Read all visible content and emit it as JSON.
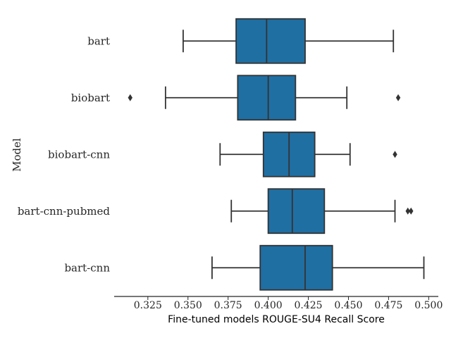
{
  "chart_data": {
    "type": "box",
    "orientation": "horizontal",
    "xlabel": "Fine-tuned models ROUGE-SU4 Recall Score",
    "ylabel": "Model",
    "xlim": [
      0.304,
      0.506
    ],
    "xticks": [
      0.325,
      0.35,
      0.375,
      0.4,
      0.425,
      0.45,
      0.475,
      0.5
    ],
    "xtick_labels": [
      "0.325",
      "0.350",
      "0.375",
      "0.400",
      "0.425",
      "0.450",
      "0.475",
      "0.500"
    ],
    "grid": false,
    "box_color": "#1f6fa3",
    "line_color": "#333333",
    "categories": [
      "bart",
      "biobart",
      "biobart-cnn",
      "bart-cnn-pubmed",
      "bart-cnn"
    ],
    "boxes": [
      {
        "name": "bart",
        "whisker_low": 0.347,
        "q1": 0.38,
        "median": 0.399,
        "q3": 0.423,
        "whisker_high": 0.478,
        "outliers": []
      },
      {
        "name": "biobart",
        "whisker_low": 0.336,
        "q1": 0.381,
        "median": 0.4,
        "q3": 0.417,
        "whisker_high": 0.449,
        "outliers": [
          0.314,
          0.481
        ]
      },
      {
        "name": "biobart-cnn",
        "whisker_low": 0.37,
        "q1": 0.397,
        "median": 0.413,
        "q3": 0.429,
        "whisker_high": 0.451,
        "outliers": [
          0.479
        ]
      },
      {
        "name": "bart-cnn-pubmed",
        "whisker_low": 0.377,
        "q1": 0.4,
        "median": 0.415,
        "q3": 0.435,
        "whisker_high": 0.479,
        "outliers": [
          0.487,
          0.489
        ]
      },
      {
        "name": "bart-cnn",
        "whisker_low": 0.365,
        "q1": 0.395,
        "median": 0.423,
        "q3": 0.44,
        "whisker_high": 0.497,
        "outliers": []
      }
    ]
  }
}
